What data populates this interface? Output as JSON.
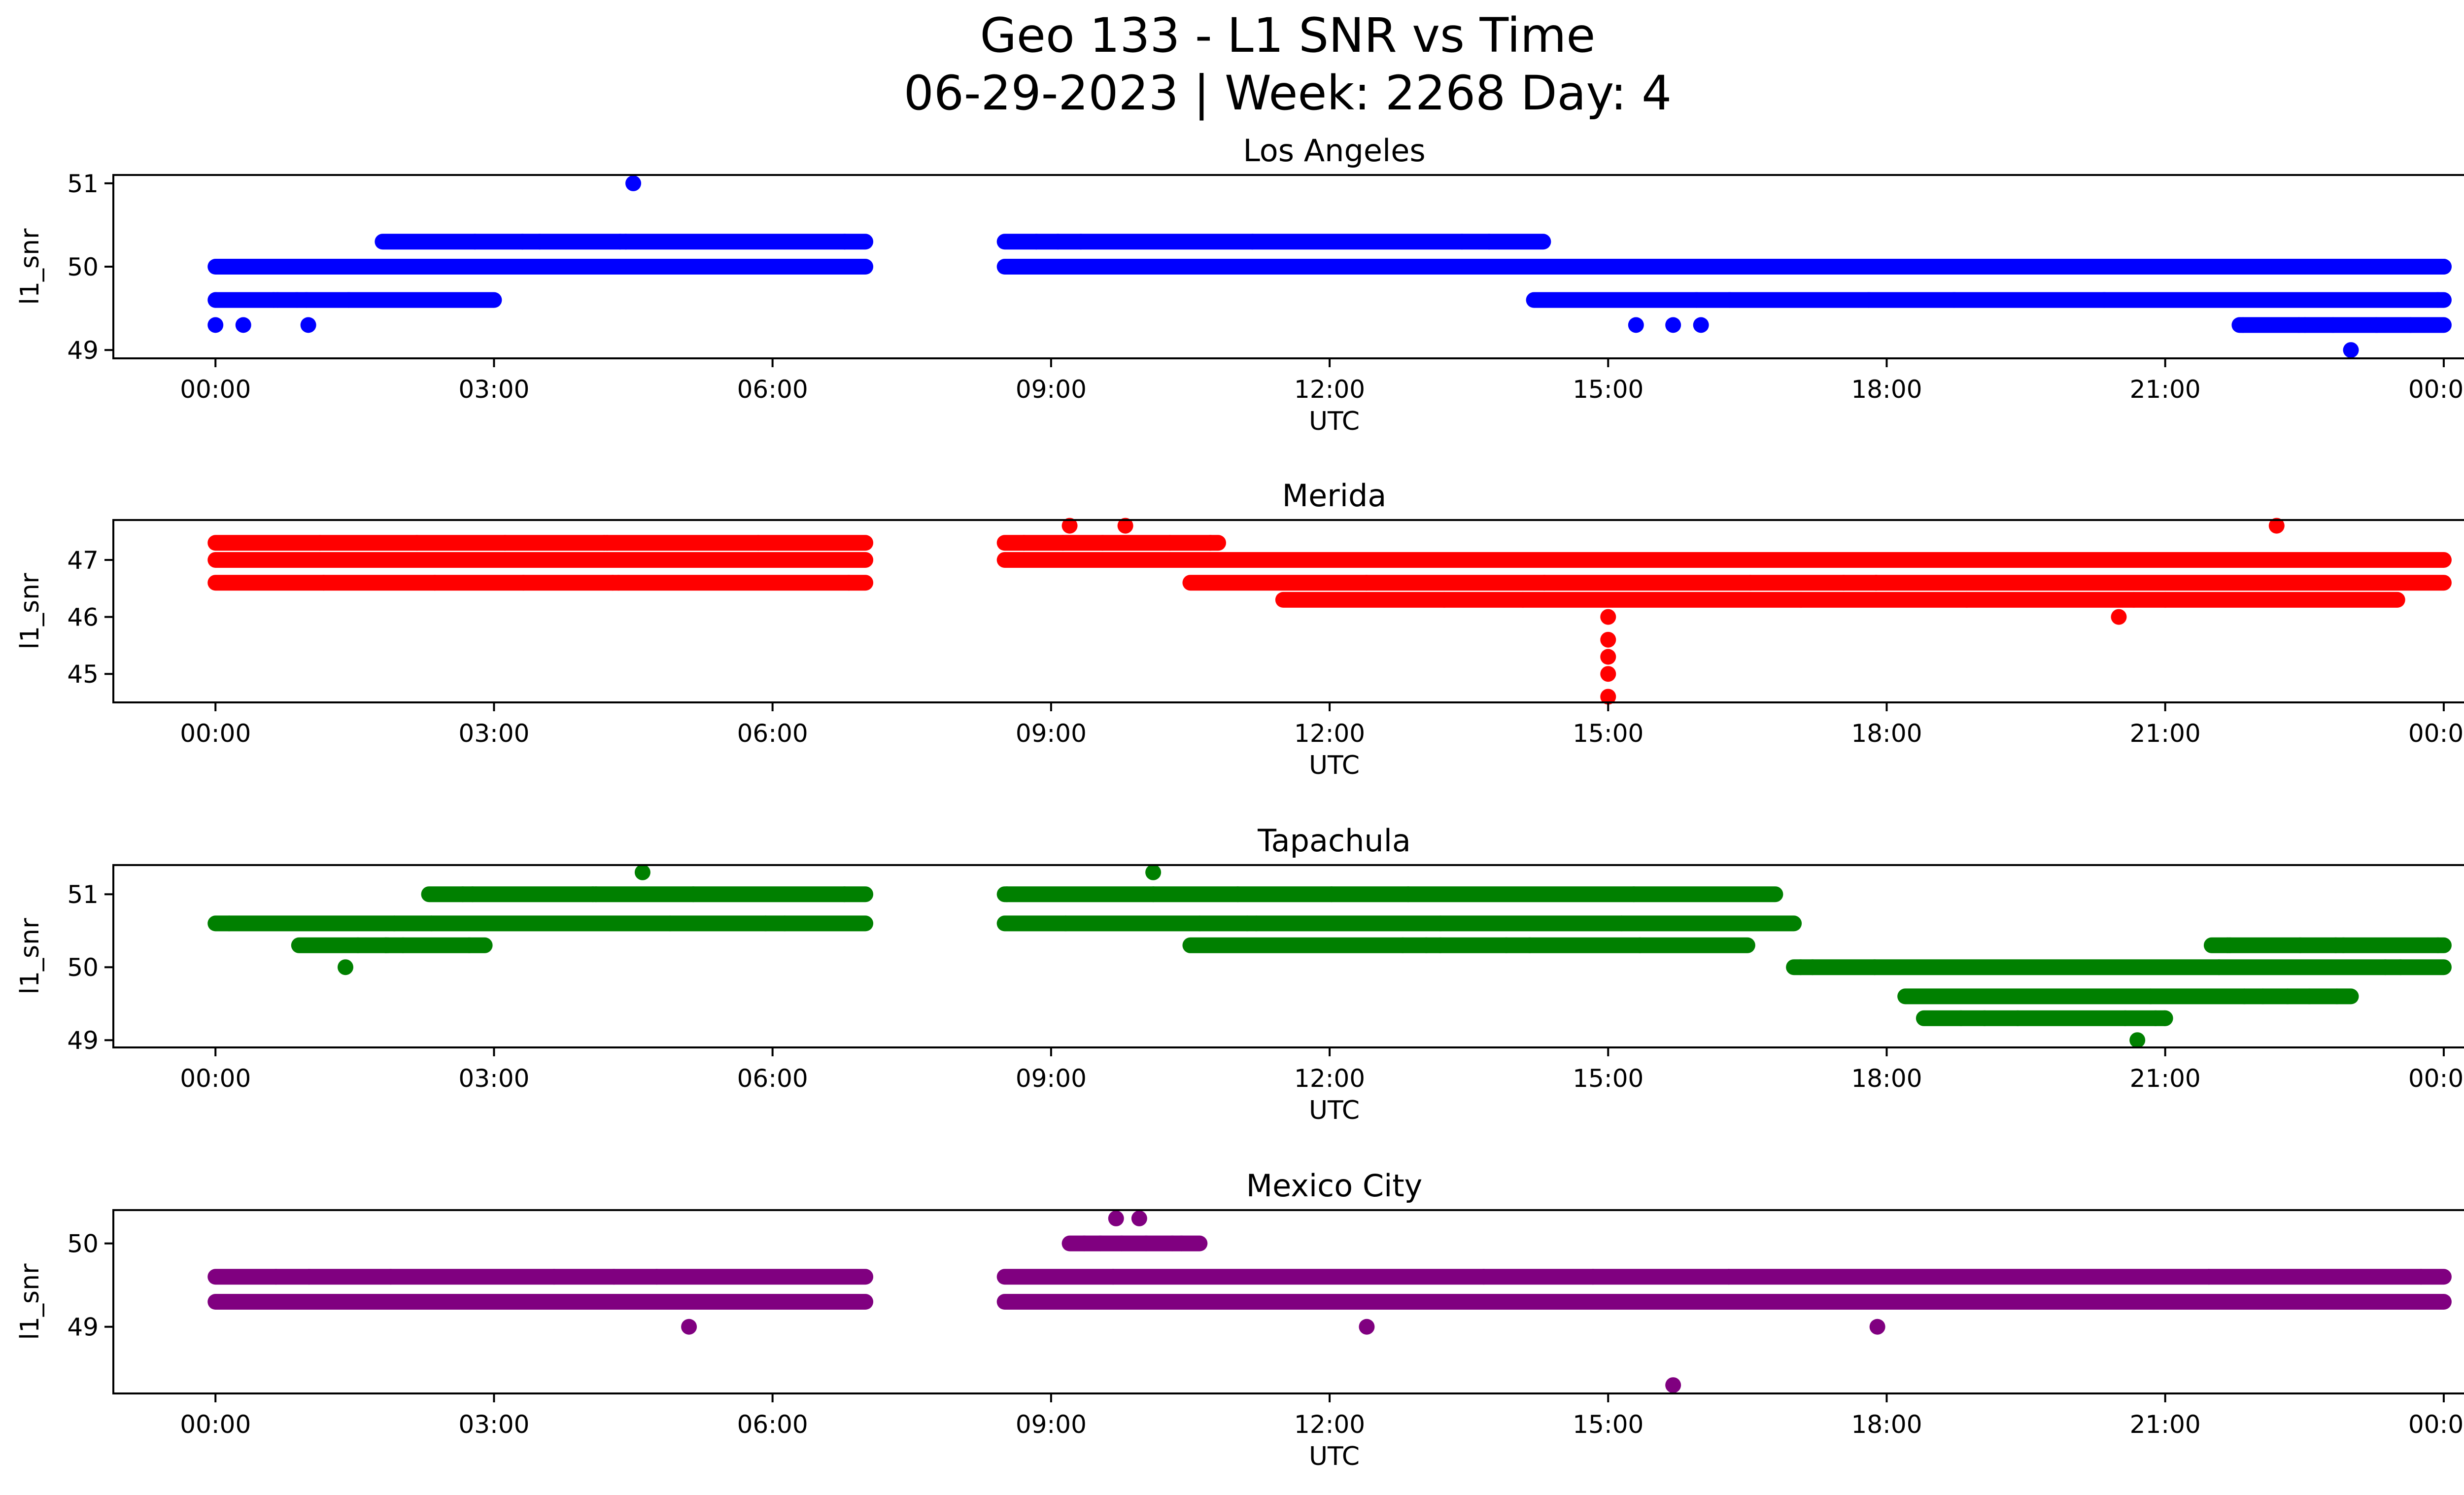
{
  "title_line1": "Geo 133 - L1 SNR vs Time",
  "title_line2": "06-29-2023 | Week: 2268 Day: 4",
  "chart_data": [
    {
      "type": "scatter",
      "title": "Los Angeles",
      "xlabel": "UTC",
      "ylabel": "l1_snr",
      "color": "#0000ff",
      "xlim_hours": [
        -1.1,
        25.2
      ],
      "ylim": [
        48.9,
        51.1
      ],
      "xticks": [
        "00:00",
        "03:00",
        "06:00",
        "09:00",
        "12:00",
        "15:00",
        "18:00",
        "21:00",
        "00:00"
      ],
      "yticks": [
        49,
        50,
        51
      ],
      "series": [
        {
          "x_hours": [
            0.0,
            7.0,
            8.5,
            24.0
          ],
          "y": [
            50.0,
            50.0,
            50.0,
            50.0
          ],
          "kind": "band"
        },
        {
          "x_hours": [
            0.0,
            3.0,
            14.2,
            24.0
          ],
          "y": [
            49.6,
            49.6,
            49.6,
            49.6
          ],
          "kind": "band"
        },
        {
          "x_hours": [
            1.8,
            7.0,
            8.5,
            14.3
          ],
          "y": [
            50.3,
            50.3,
            50.3,
            50.3
          ],
          "kind": "band"
        },
        {
          "x_hours": [
            21.8,
            24.0
          ],
          "y": [
            49.3,
            49.3
          ],
          "kind": "band"
        },
        {
          "x_hours": [
            0.0,
            0.3,
            1.0,
            4.5,
            15.3,
            15.7,
            16.0,
            23.0,
            24.0
          ],
          "y": [
            49.3,
            49.3,
            49.3,
            51.0,
            49.3,
            49.3,
            49.3,
            49.0,
            50.0
          ],
          "kind": "points"
        }
      ]
    },
    {
      "type": "scatter",
      "title": "Merida",
      "xlabel": "UTC",
      "ylabel": "l1_snr",
      "color": "#ff0000",
      "xlim_hours": [
        -1.1,
        25.2
      ],
      "ylim": [
        44.5,
        47.7
      ],
      "xticks": [
        "00:00",
        "03:00",
        "06:00",
        "09:00",
        "12:00",
        "15:00",
        "18:00",
        "21:00",
        "00:00"
      ],
      "yticks": [
        45,
        46,
        47
      ],
      "series": [
        {
          "x_hours": [
            0.0,
            7.0,
            8.5,
            24.0
          ],
          "y": [
            47.0,
            47.0,
            47.0,
            47.0
          ],
          "kind": "band"
        },
        {
          "x_hours": [
            0.0,
            7.0,
            10.5,
            24.0
          ],
          "y": [
            46.6,
            46.6,
            46.6,
            46.6
          ],
          "kind": "band"
        },
        {
          "x_hours": [
            0.0,
            7.0,
            8.5,
            10.8
          ],
          "y": [
            47.3,
            47.3,
            47.3,
            47.3
          ],
          "kind": "band"
        },
        {
          "x_hours": [
            11.5,
            23.5
          ],
          "y": [
            46.3,
            46.3
          ],
          "kind": "band"
        },
        {
          "x_hours": [
            9.2,
            9.8,
            22.2,
            20.5,
            15.0,
            15.0,
            15.0,
            15.0,
            15.0
          ],
          "y": [
            47.6,
            47.6,
            47.6,
            46.0,
            46.0,
            45.6,
            45.3,
            45.0,
            44.6
          ],
          "kind": "points"
        }
      ]
    },
    {
      "type": "scatter",
      "title": "Tapachula",
      "xlabel": "UTC",
      "ylabel": "l1_snr",
      "color": "#008000",
      "xlim_hours": [
        -1.1,
        25.2
      ],
      "ylim": [
        48.9,
        51.4
      ],
      "xticks": [
        "00:00",
        "03:00",
        "06:00",
        "09:00",
        "12:00",
        "15:00",
        "18:00",
        "21:00",
        "00:00"
      ],
      "yticks": [
        49,
        50,
        51
      ],
      "series": [
        {
          "x_hours": [
            0.0,
            7.0,
            8.5,
            17.0
          ],
          "y": [
            50.6,
            50.6,
            50.6,
            50.6
          ],
          "kind": "band"
        },
        {
          "x_hours": [
            2.3,
            7.0,
            8.5,
            16.8
          ],
          "y": [
            51.0,
            51.0,
            51.0,
            51.0
          ],
          "kind": "band"
        },
        {
          "x_hours": [
            0.9,
            2.9,
            10.5,
            16.5
          ],
          "y": [
            50.3,
            50.3,
            50.3,
            50.3
          ],
          "kind": "band"
        },
        {
          "x_hours": [
            17.0,
            24.0
          ],
          "y": [
            50.0,
            50.0
          ],
          "kind": "band"
        },
        {
          "x_hours": [
            18.2,
            23.0
          ],
          "y": [
            49.6,
            49.6
          ],
          "kind": "band"
        },
        {
          "x_hours": [
            18.4,
            21.0
          ],
          "y": [
            49.3,
            49.3
          ],
          "kind": "band"
        },
        {
          "x_hours": [
            21.5,
            24.0
          ],
          "y": [
            50.3,
            50.3
          ],
          "kind": "band"
        },
        {
          "x_hours": [
            4.6,
            10.1,
            20.7,
            1.4
          ],
          "y": [
            51.3,
            51.3,
            49.0,
            50.0
          ],
          "kind": "points"
        }
      ]
    },
    {
      "type": "scatter",
      "title": "Mexico City",
      "xlabel": "UTC",
      "ylabel": "l1_snr",
      "color": "#800080",
      "xlim_hours": [
        -1.1,
        25.2
      ],
      "ylim": [
        48.2,
        50.4
      ],
      "xticks": [
        "00:00",
        "03:00",
        "06:00",
        "09:00",
        "12:00",
        "15:00",
        "18:00",
        "21:00",
        "00:00"
      ],
      "yticks": [
        49,
        50
      ],
      "series": [
        {
          "x_hours": [
            0.0,
            7.0,
            8.5,
            24.0
          ],
          "y": [
            49.6,
            49.6,
            49.6,
            49.6
          ],
          "kind": "band"
        },
        {
          "x_hours": [
            0.0,
            7.0,
            8.5,
            24.0
          ],
          "y": [
            49.3,
            49.3,
            49.3,
            49.3
          ],
          "kind": "band"
        },
        {
          "x_hours": [
            9.2,
            10.6
          ],
          "y": [
            50.0,
            50.0
          ],
          "kind": "band"
        },
        {
          "x_hours": [
            9.7,
            9.95,
            15.7,
            5.1,
            12.4,
            17.9
          ],
          "y": [
            50.3,
            50.3,
            48.3,
            49.0,
            49.0,
            49.0
          ],
          "kind": "points"
        }
      ]
    }
  ]
}
